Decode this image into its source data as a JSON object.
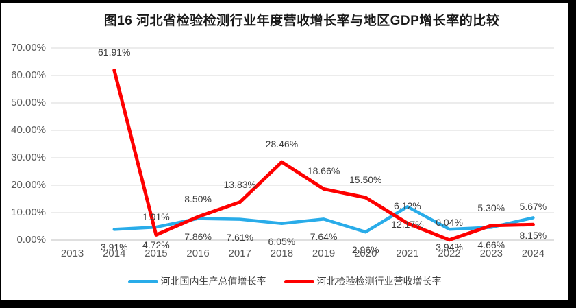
{
  "page": {
    "background": "#000000",
    "chart_background": "#FFFFFF"
  },
  "chart_data": {
    "type": "line",
    "title": "图16 河北省检验检测行业年度营收增长率与地区GDP增长率的比较",
    "categories": [
      "2013",
      "2014",
      "2015",
      "2016",
      "2017",
      "2018",
      "2019",
      "2020",
      "2021",
      "2022",
      "2023",
      "2024"
    ],
    "y_axis": {
      "min": 0,
      "max": 70,
      "tick_values": [
        0,
        10,
        20,
        30,
        40,
        50,
        60,
        70
      ],
      "tick_labels": [
        "0.00%",
        "10.00%",
        "20.00%",
        "30.00%",
        "40.00%",
        "50.00%",
        "60.00%",
        "70.00%"
      ]
    },
    "grid": true,
    "legend_position": "bottom",
    "colors": {
      "gridline": "#D9D9D9",
      "axis_line": "#BFBFBF"
    },
    "series": [
      {
        "name": "河北国内生产总值增长率",
        "color": "#29ACE9",
        "stroke_width": 4.5,
        "label_position": "below",
        "values": [
          null,
          3.91,
          4.72,
          7.86,
          7.61,
          6.05,
          7.64,
          2.96,
          12.17,
          3.94,
          4.66,
          8.15
        ],
        "labels": [
          null,
          "3.91%",
          "4.72%",
          "7.86%",
          "7.61%",
          "6.05%",
          "7.64%",
          "2.96%",
          "12.17%",
          "3.94%",
          "4.66%",
          "8.15%"
        ]
      },
      {
        "name": "河北检验检测行业营收增长率",
        "color": "#FE0000",
        "stroke_width": 5,
        "label_position": "above",
        "values": [
          null,
          61.91,
          1.91,
          8.5,
          13.83,
          28.46,
          18.66,
          15.5,
          6.12,
          0.04,
          5.3,
          5.67
        ],
        "labels": [
          null,
          "61.91%",
          "1.91%",
          "8.50%",
          "13.83%",
          "28.46%",
          "18.66%",
          "15.50%",
          "6.12%",
          "0.04%",
          "5.30%",
          "5.67%"
        ]
      }
    ]
  }
}
